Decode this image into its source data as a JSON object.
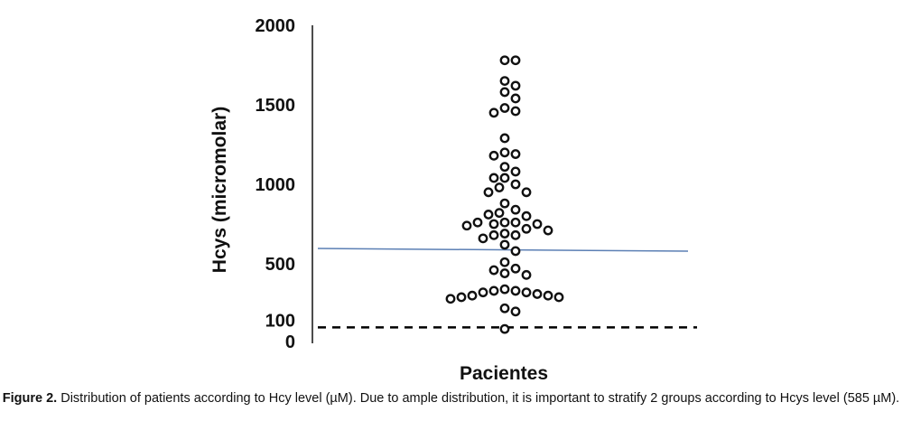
{
  "chart_data": {
    "type": "scatter",
    "xlabel": "Pacientes",
    "ylabel": "Hcys (micromolar)",
    "ylim": [
      0,
      2000
    ],
    "y_ticks": [
      "0",
      "100",
      "500",
      "1000",
      "1500",
      "2000"
    ],
    "reference_lines": [
      {
        "value": 100,
        "style": "dashed",
        "color": "#000000"
      },
      {
        "value": 585,
        "style": "solid",
        "color": "#5b7fb4"
      }
    ],
    "marker": "open-circle",
    "values": [
      1780,
      1780,
      1650,
      1620,
      1580,
      1540,
      1480,
      1460,
      1450,
      1290,
      1200,
      1190,
      1180,
      1110,
      1080,
      1040,
      1040,
      1000,
      980,
      950,
      950,
      880,
      840,
      820,
      810,
      800,
      760,
      760,
      760,
      750,
      750,
      740,
      720,
      710,
      690,
      680,
      680,
      660,
      620,
      580,
      510,
      470,
      460,
      440,
      430,
      340,
      330,
      330,
      320,
      320,
      310,
      300,
      300,
      290,
      290,
      280,
      220,
      200,
      90
    ]
  },
  "caption": {
    "label": "Figure 2.",
    "text": "Distribution of patients according to Hcy level (µM). Due to ample distribution, it is important to stratify 2 groups according to Hcys level (585 µM)."
  }
}
